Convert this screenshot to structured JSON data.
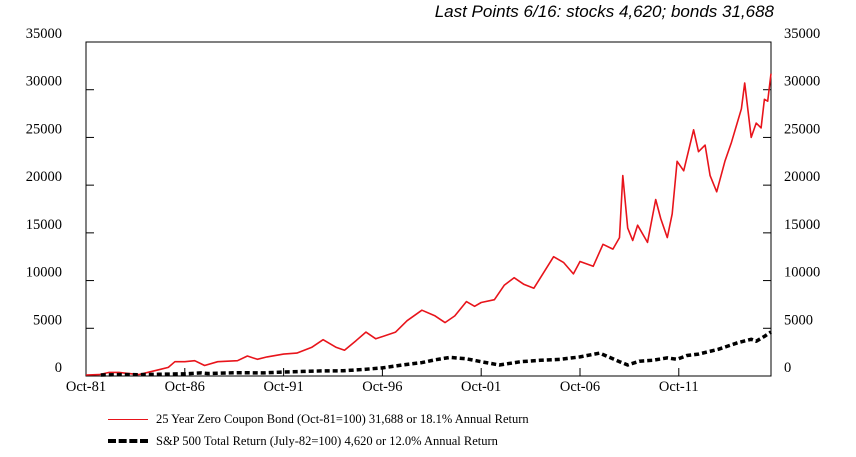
{
  "subtitle": "Last Points 6/16: stocks 4,620; bonds 31,688",
  "colors": {
    "bonds": "#e8141b",
    "stocks": "#000000"
  },
  "chart_data": {
    "type": "line",
    "title": "",
    "subtitle": "Last Points 6/16: stocks 4,620; bonds 31,688",
    "xlabel": "",
    "ylabel": "",
    "x_range": [
      "1981-10",
      "2016-06"
    ],
    "ylim": [
      0,
      35000
    ],
    "y_ticks": [
      0,
      5000,
      10000,
      15000,
      20000,
      25000,
      30000,
      35000
    ],
    "y_tick_labels": [
      "0",
      "5000",
      "10000",
      "15000",
      "20000",
      "25000",
      "30000",
      "35000"
    ],
    "x_ticks": [
      "1981-10",
      "1986-10",
      "1991-10",
      "1996-10",
      "2001-10",
      "2006-10",
      "2011-10"
    ],
    "x_tick_labels": [
      "Oct-81",
      "Oct-86",
      "Oct-91",
      "Oct-96",
      "Oct-01",
      "Oct-06",
      "Oct-11"
    ],
    "legend_position": "bottom",
    "series": [
      {
        "name": "25 Year Zero Coupon Bond (Oct-81=100) 31,688 or 18.1% Annual Return",
        "color": "#e8141b",
        "style": "solid",
        "points": [
          [
            "1981-10",
            100
          ],
          [
            "1982-06",
            150
          ],
          [
            "1982-12",
            380
          ],
          [
            "1983-06",
            380
          ],
          [
            "1984-06",
            150
          ],
          [
            "1984-12",
            400
          ],
          [
            "1985-06",
            650
          ],
          [
            "1985-12",
            900
          ],
          [
            "1986-04",
            1500
          ],
          [
            "1986-10",
            1500
          ],
          [
            "1987-04",
            1600
          ],
          [
            "1987-10",
            1100
          ],
          [
            "1988-06",
            1500
          ],
          [
            "1989-06",
            1600
          ],
          [
            "1989-12",
            2100
          ],
          [
            "1990-06",
            1750
          ],
          [
            "1990-12",
            2000
          ],
          [
            "1991-10",
            2300
          ],
          [
            "1992-06",
            2400
          ],
          [
            "1993-03",
            3000
          ],
          [
            "1993-10",
            3800
          ],
          [
            "1994-06",
            3000
          ],
          [
            "1994-11",
            2700
          ],
          [
            "1995-06",
            3700
          ],
          [
            "1995-12",
            4600
          ],
          [
            "1996-06",
            3900
          ],
          [
            "1997-06",
            4600
          ],
          [
            "1998-01",
            5800
          ],
          [
            "1998-10",
            6900
          ],
          [
            "1999-06",
            6300
          ],
          [
            "1999-12",
            5600
          ],
          [
            "2000-06",
            6300
          ],
          [
            "2001-01",
            7800
          ],
          [
            "2001-06",
            7300
          ],
          [
            "2001-10",
            7700
          ],
          [
            "2002-06",
            8000
          ],
          [
            "2002-12",
            9500
          ],
          [
            "2003-06",
            10300
          ],
          [
            "2003-12",
            9600
          ],
          [
            "2004-06",
            9200
          ],
          [
            "2005-06",
            12500
          ],
          [
            "2005-12",
            11900
          ],
          [
            "2006-06",
            10700
          ],
          [
            "2006-10",
            12000
          ],
          [
            "2007-06",
            11500
          ],
          [
            "2007-12",
            13800
          ],
          [
            "2008-06",
            13300
          ],
          [
            "2008-10",
            14500
          ],
          [
            "2008-12",
            21000
          ],
          [
            "2009-03",
            15500
          ],
          [
            "2009-06",
            14200
          ],
          [
            "2009-09",
            15800
          ],
          [
            "2010-03",
            14000
          ],
          [
            "2010-08",
            18500
          ],
          [
            "2010-11",
            16500
          ],
          [
            "2011-03",
            14500
          ],
          [
            "2011-06",
            17000
          ],
          [
            "2011-09",
            22500
          ],
          [
            "2012-01",
            21500
          ],
          [
            "2012-07",
            25800
          ],
          [
            "2012-10",
            23500
          ],
          [
            "2013-02",
            24200
          ],
          [
            "2013-05",
            21000
          ],
          [
            "2013-09",
            19300
          ],
          [
            "2014-02",
            22500
          ],
          [
            "2014-06",
            24500
          ],
          [
            "2014-12",
            28000
          ],
          [
            "2015-02",
            30700
          ],
          [
            "2015-06",
            25000
          ],
          [
            "2015-09",
            26500
          ],
          [
            "2015-12",
            26000
          ],
          [
            "2016-02",
            29000
          ],
          [
            "2016-04",
            28800
          ],
          [
            "2016-06",
            31688
          ]
        ]
      },
      {
        "name": "S&P 500 Total Return (July-82=100) 4,620 or 12.0% Annual Return",
        "color": "#000000",
        "style": "dashed",
        "points": [
          [
            "1982-07",
            100
          ],
          [
            "1983-06",
            150
          ],
          [
            "1984-06",
            140
          ],
          [
            "1985-06",
            180
          ],
          [
            "1986-10",
            230
          ],
          [
            "1987-08",
            320
          ],
          [
            "1987-12",
            260
          ],
          [
            "1989-06",
            350
          ],
          [
            "1990-10",
            330
          ],
          [
            "1991-10",
            420
          ],
          [
            "1992-10",
            480
          ],
          [
            "1993-10",
            530
          ],
          [
            "1994-10",
            540
          ],
          [
            "1995-10",
            680
          ],
          [
            "1996-10",
            850
          ],
          [
            "1997-10",
            1150
          ],
          [
            "1998-10",
            1400
          ],
          [
            "1999-06",
            1700
          ],
          [
            "2000-03",
            1950
          ],
          [
            "2001-01",
            1800
          ],
          [
            "2001-10",
            1500
          ],
          [
            "2002-09",
            1150
          ],
          [
            "2003-10",
            1500
          ],
          [
            "2004-10",
            1650
          ],
          [
            "2005-10",
            1750
          ],
          [
            "2006-10",
            2000
          ],
          [
            "2007-10",
            2400
          ],
          [
            "2008-10",
            1500
          ],
          [
            "2009-03",
            1150
          ],
          [
            "2009-10",
            1550
          ],
          [
            "2010-06",
            1650
          ],
          [
            "2011-03",
            1900
          ],
          [
            "2011-09",
            1750
          ],
          [
            "2012-03",
            2150
          ],
          [
            "2012-10",
            2300
          ],
          [
            "2013-10",
            2800
          ],
          [
            "2014-10",
            3500
          ],
          [
            "2015-06",
            3850
          ],
          [
            "2015-09",
            3650
          ],
          [
            "2016-02",
            4150
          ],
          [
            "2016-06",
            4620
          ]
        ]
      }
    ]
  }
}
